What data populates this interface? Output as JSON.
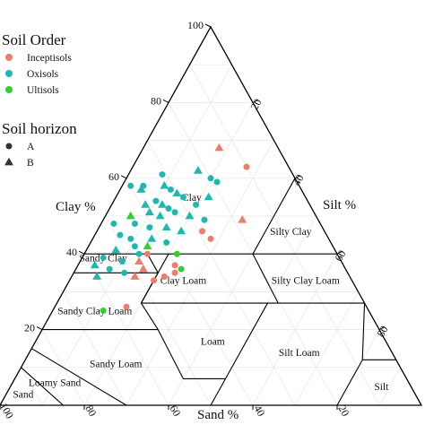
{
  "chart_data": {
    "type": "scatter",
    "subtype": "ternary soil texture triangle",
    "axis_titles": {
      "clay": "Clay %",
      "silt": "Silt %",
      "sand": "Sand %"
    },
    "ticks": {
      "clay": [
        "20",
        "40",
        "60",
        "80",
        "100"
      ],
      "silt": [
        "20",
        "40",
        "60",
        "80"
      ],
      "sand": [
        "100",
        "80",
        "60",
        "40",
        "20"
      ]
    },
    "grid": true,
    "legend": {
      "placement": "top-left",
      "order_title": "Soil Order",
      "orders": [
        {
          "name": "Inceptisols",
          "color": "#f07b6b"
        },
        {
          "name": "Oxisols",
          "color": "#1fb8b0"
        },
        {
          "name": "Ultisols",
          "color": "#2fd02f"
        }
      ],
      "horizon_title": "Soil horizon",
      "horizons": [
        {
          "name": "A",
          "shape": "circle"
        },
        {
          "name": "B",
          "shape": "triangle"
        }
      ]
    },
    "texture_classes": [
      "Clay",
      "Silty Clay",
      "Sandy Clay",
      "Clay Loam",
      "Silty Clay Loam",
      "Sandy Clay Loam",
      "Loam",
      "Silt Loam",
      "Sandy Loam",
      "Loamy Sand",
      "Sand",
      "Silt"
    ],
    "points": [
      {
        "clay": 68,
        "silt": 18,
        "order": "Inceptisols",
        "horizon": "B"
      },
      {
        "clay": 63,
        "silt": 27,
        "order": "Inceptisols",
        "horizon": "A"
      },
      {
        "clay": 49,
        "silt": 33,
        "order": "Inceptisols",
        "horizon": "B"
      },
      {
        "clay": 46,
        "silt": 25,
        "order": "Inceptisols",
        "horizon": "A"
      },
      {
        "clay": 44,
        "silt": 28,
        "order": "Inceptisols",
        "horizon": "A"
      },
      {
        "clay": 40,
        "silt": 15,
        "order": "Inceptisols",
        "horizon": "A"
      },
      {
        "clay": 38,
        "silt": 14,
        "order": "Inceptisols",
        "horizon": "B"
      },
      {
        "clay": 36,
        "silt": 16,
        "order": "Inceptisols",
        "horizon": "B"
      },
      {
        "clay": 34,
        "silt": 15,
        "order": "Inceptisols",
        "horizon": "B"
      },
      {
        "clay": 33,
        "silt": 20,
        "order": "Inceptisols",
        "horizon": "A"
      },
      {
        "clay": 34,
        "silt": 22,
        "order": "Inceptisols",
        "horizon": "A"
      },
      {
        "clay": 37,
        "silt": 23,
        "order": "Inceptisols",
        "horizon": "A"
      },
      {
        "clay": 35,
        "silt": 24,
        "order": "Inceptisols",
        "horizon": "A"
      },
      {
        "clay": 26,
        "silt": 17,
        "order": "Inceptisols",
        "horizon": "A"
      },
      {
        "clay": 58,
        "silt": 5,
        "order": "Oxisols",
        "horizon": "A"
      },
      {
        "clay": 57,
        "silt": 5,
        "order": "Oxisols",
        "horizon": "B"
      },
      {
        "clay": 58,
        "silt": 10,
        "order": "Oxisols",
        "horizon": "B"
      },
      {
        "clay": 57,
        "silt": 12,
        "order": "Oxisols",
        "horizon": "A"
      },
      {
        "clay": 56,
        "silt": 14,
        "order": "Oxisols",
        "horizon": "B"
      },
      {
        "clay": 55,
        "silt": 16,
        "order": "Oxisols",
        "horizon": "A"
      },
      {
        "clay": 54,
        "silt": 10,
        "order": "Oxisols",
        "horizon": "A"
      },
      {
        "clay": 53,
        "silt": 8,
        "order": "Oxisols",
        "horizon": "B"
      },
      {
        "clay": 53,
        "silt": 12,
        "order": "Oxisols",
        "horizon": "B"
      },
      {
        "clay": 52,
        "silt": 14,
        "order": "Oxisols",
        "horizon": "A"
      },
      {
        "clay": 51,
        "silt": 10,
        "order": "Oxisols",
        "horizon": "B"
      },
      {
        "clay": 51,
        "silt": 16,
        "order": "Oxisols",
        "horizon": "A"
      },
      {
        "clay": 50,
        "silt": 13,
        "order": "Oxisols",
        "horizon": "B"
      },
      {
        "clay": 50,
        "silt": 20,
        "order": "Oxisols",
        "horizon": "B"
      },
      {
        "clay": 49,
        "silt": 24,
        "order": "Oxisols",
        "horizon": "A"
      },
      {
        "clay": 48,
        "silt": 8,
        "order": "Oxisols",
        "horizon": "A"
      },
      {
        "clay": 47,
        "silt": 12,
        "order": "Oxisols",
        "horizon": "A"
      },
      {
        "clay": 47,
        "silt": 16,
        "order": "Oxisols",
        "horizon": "B"
      },
      {
        "clay": 46,
        "silt": 20,
        "order": "Oxisols",
        "horizon": "B"
      },
      {
        "clay": 45,
        "silt": 6,
        "order": "Oxisols",
        "horizon": "A"
      },
      {
        "clay": 44,
        "silt": 9,
        "order": "Oxisols",
        "horizon": "A"
      },
      {
        "clay": 44,
        "silt": 14,
        "order": "Oxisols",
        "horizon": "B"
      },
      {
        "clay": 43,
        "silt": 18,
        "order": "Oxisols",
        "horizon": "A"
      },
      {
        "clay": 42,
        "silt": 11,
        "order": "Oxisols",
        "horizon": "A"
      },
      {
        "clay": 41,
        "silt": 7,
        "order": "Oxisols",
        "horizon": "B"
      },
      {
        "clay": 40,
        "silt": 13,
        "order": "Oxisols",
        "horizon": "A"
      },
      {
        "clay": 39,
        "silt": 5,
        "order": "Oxisols",
        "horizon": "A"
      },
      {
        "clay": 38,
        "silt": 10,
        "order": "Oxisols",
        "horizon": "A"
      },
      {
        "clay": 37,
        "silt": 4,
        "order": "Oxisols",
        "horizon": "B"
      },
      {
        "clay": 36,
        "silt": 8,
        "order": "Oxisols",
        "horizon": "A"
      },
      {
        "clay": 35,
        "silt": 12,
        "order": "Oxisols",
        "horizon": "A"
      },
      {
        "clay": 34,
        "silt": 6,
        "order": "Oxisols",
        "horizon": "B"
      },
      {
        "clay": 60,
        "silt": 20,
        "order": "Oxisols",
        "horizon": "A"
      },
      {
        "clay": 62,
        "silt": 16,
        "order": "Oxisols",
        "horizon": "B"
      },
      {
        "clay": 59,
        "silt": 22,
        "order": "Oxisols",
        "horizon": "A"
      },
      {
        "clay": 61,
        "silt": 8,
        "order": "Oxisols",
        "horizon": "A"
      },
      {
        "clay": 58,
        "silt": 2,
        "order": "Oxisols",
        "horizon": "A"
      },
      {
        "clay": 55,
        "silt": 22,
        "order": "Oxisols",
        "horizon": "B"
      },
      {
        "clay": 53,
        "silt": 20,
        "order": "Oxisols",
        "horizon": "A"
      },
      {
        "clay": 48,
        "silt": 3,
        "order": "Oxisols",
        "horizon": "A"
      },
      {
        "clay": 50,
        "silt": 6,
        "order": "Ultisols",
        "horizon": "B"
      },
      {
        "clay": 42,
        "silt": 14,
        "order": "Ultisols",
        "horizon": "B"
      },
      {
        "clay": 36,
        "silt": 25,
        "order": "Ultisols",
        "horizon": "A"
      },
      {
        "clay": 25,
        "silt": 12,
        "order": "Ultisols",
        "horizon": "A"
      },
      {
        "clay": 40,
        "silt": 22,
        "order": "Ultisols",
        "horizon": "A"
      }
    ]
  }
}
